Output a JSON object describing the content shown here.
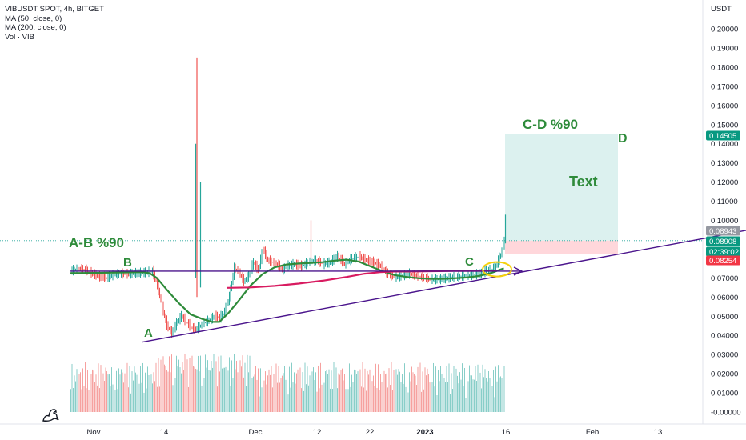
{
  "header": {
    "symbol_line": "VIBUSDT SPOT, 4h, BITGET",
    "ma50": "MA (50, close, 0)",
    "ma200": "MA (200, close, 0)",
    "vol": "Vol · VIB"
  },
  "chart_data": {
    "type": "line",
    "title": "VIBUSDT SPOT, 4h, BITGET",
    "ylabel": "USDT",
    "ylim": [
      -0.005,
      0.205
    ],
    "y_ticks": [
      "0.20000",
      "0.19000",
      "0.18000",
      "0.17000",
      "0.16000",
      "0.15000",
      "0.14000",
      "0.13000",
      "0.12000",
      "0.11000",
      "0.10000",
      "0.07000",
      "0.06000",
      "0.05000",
      "0.04000",
      "0.03000",
      "0.02000",
      "0.01000",
      "-0.00000"
    ],
    "x_ticks": [
      "Nov",
      "14",
      "Dec",
      "12",
      "22",
      "2023",
      "16",
      "Feb",
      "13"
    ],
    "price_labels": [
      {
        "text": "0.14505",
        "color": "#089981",
        "value": 0.14505
      },
      {
        "text": "0.08943",
        "color": "#9598a1",
        "value": 0.08943
      },
      {
        "text": "0.08908",
        "color": "#089981",
        "value": 0.08908
      },
      {
        "text": "02:39:02",
        "color": "#089981"
      },
      {
        "text": "0.08254",
        "color": "#f23645",
        "value": 0.08254
      }
    ],
    "series": [
      {
        "name": "VIBUSDT",
        "color": "#26a69a",
        "down_color": "#ef5350",
        "points": [
          [
            0,
            0.0735
          ],
          [
            6,
            0.0745
          ],
          [
            12,
            0.074
          ],
          [
            18,
            0.072
          ],
          [
            24,
            0.0705
          ],
          [
            30,
            0.0698
          ],
          [
            36,
            0.0715
          ],
          [
            42,
            0.072
          ],
          [
            48,
            0.0718
          ],
          [
            54,
            0.0722
          ],
          [
            60,
            0.0725
          ],
          [
            64,
            0.0728
          ],
          [
            68,
            0.0735
          ],
          [
            72,
            0.066
          ],
          [
            76,
            0.055
          ],
          [
            80,
            0.045
          ],
          [
            84,
            0.041
          ],
          [
            88,
            0.046
          ],
          [
            92,
            0.05
          ],
          [
            96,
            0.047
          ],
          [
            100,
            0.044
          ],
          [
            104,
            0.043
          ],
          [
            110,
            0.046
          ],
          [
            116,
            0.048
          ],
          [
            120,
            0.05
          ],
          [
            124,
            0.049
          ],
          [
            128,
            0.052
          ],
          [
            132,
            0.06
          ],
          [
            136,
            0.075
          ],
          [
            140,
            0.073
          ],
          [
            144,
            0.068
          ],
          [
            148,
            0.071
          ],
          [
            152,
            0.078
          ],
          [
            156,
            0.074
          ],
          [
            160,
            0.085
          ],
          [
            164,
            0.079
          ],
          [
            168,
            0.078
          ],
          [
            172,
            0.077
          ],
          [
            176,
            0.074
          ],
          [
            180,
            0.076
          ],
          [
            186,
            0.077
          ],
          [
            192,
            0.076
          ],
          [
            198,
            0.078
          ],
          [
            204,
            0.079
          ],
          [
            210,
            0.077
          ],
          [
            216,
            0.078
          ],
          [
            222,
            0.081
          ],
          [
            228,
            0.077
          ],
          [
            234,
            0.08
          ],
          [
            240,
            0.081
          ],
          [
            246,
            0.079
          ],
          [
            252,
            0.078
          ],
          [
            258,
            0.076
          ],
          [
            264,
            0.072
          ],
          [
            270,
            0.07
          ],
          [
            276,
            0.071
          ],
          [
            282,
            0.072
          ],
          [
            288,
            0.071
          ],
          [
            294,
            0.07
          ],
          [
            300,
            0.069
          ],
          [
            306,
            0.069
          ],
          [
            312,
            0.0695
          ],
          [
            318,
            0.07
          ],
          [
            324,
            0.0705
          ],
          [
            330,
            0.071
          ],
          [
            336,
            0.0715
          ],
          [
            342,
            0.072
          ],
          [
            346,
            0.0735
          ],
          [
            350,
            0.074
          ],
          [
            354,
            0.076
          ],
          [
            358,
            0.082
          ],
          [
            361,
            0.0891
          ]
        ]
      },
      {
        "name": "MA (50, close, 0)",
        "color": "#2e8b3a",
        "points": [
          [
            0,
            0.0725
          ],
          [
            20,
            0.0726
          ],
          [
            40,
            0.0728
          ],
          [
            60,
            0.073
          ],
          [
            66,
            0.0725
          ],
          [
            72,
            0.07
          ],
          [
            80,
            0.064
          ],
          [
            90,
            0.057
          ],
          [
            100,
            0.051
          ],
          [
            110,
            0.0485
          ],
          [
            118,
            0.047
          ],
          [
            124,
            0.047
          ],
          [
            132,
            0.052
          ],
          [
            140,
            0.058
          ],
          [
            150,
            0.066
          ],
          [
            160,
            0.072
          ],
          [
            170,
            0.0755
          ],
          [
            180,
            0.077
          ],
          [
            190,
            0.0775
          ],
          [
            200,
            0.0778
          ],
          [
            210,
            0.0782
          ],
          [
            220,
            0.079
          ],
          [
            230,
            0.0795
          ],
          [
            240,
            0.0785
          ],
          [
            250,
            0.076
          ],
          [
            260,
            0.0735
          ],
          [
            270,
            0.0715
          ],
          [
            280,
            0.0705
          ],
          [
            290,
            0.0698
          ],
          [
            300,
            0.0695
          ],
          [
            310,
            0.0695
          ],
          [
            320,
            0.0698
          ],
          [
            330,
            0.0702
          ],
          [
            340,
            0.071
          ],
          [
            350,
            0.0725
          ],
          [
            361,
            0.075
          ]
        ]
      },
      {
        "name": "MA (200, close, 0)",
        "color": "#d81b60",
        "points": [
          [
            130,
            0.0648
          ],
          [
            150,
            0.065
          ],
          [
            170,
            0.0658
          ],
          [
            190,
            0.067
          ],
          [
            210,
            0.0685
          ],
          [
            230,
            0.0705
          ],
          [
            245,
            0.0722
          ],
          [
            258,
            0.073
          ],
          [
            270,
            0.0733
          ],
          [
            285,
            0.0733
          ],
          [
            300,
            0.0735
          ],
          [
            320,
            0.0736
          ],
          [
            340,
            0.0737
          ],
          [
            355,
            0.0738
          ]
        ]
      }
    ],
    "volume": {
      "color_up": "#26a69a",
      "color_down": "#ef5350",
      "max": 0.035
    },
    "annotations": [
      {
        "text": "A-B %90",
        "color": "#2e8b3a"
      },
      {
        "text": "B",
        "color": "#2e8b3a"
      },
      {
        "text": "A",
        "color": "#2e8b3a"
      },
      {
        "text": "C",
        "color": "#2e8b3a"
      },
      {
        "text": "C-D %90",
        "color": "#2e8b3a"
      },
      {
        "text": "D",
        "color": "#2e8b3a"
      },
      {
        "text": "Text",
        "color": "#2e8b3a"
      }
    ],
    "trendlines_color": "#4a148c",
    "position_tool": {
      "target_color": "#b2dfdb",
      "stop_color": "#ffcdd2",
      "entry": 0.08943,
      "target": 0.14505,
      "stop": 0.08254
    },
    "grid": false
  }
}
